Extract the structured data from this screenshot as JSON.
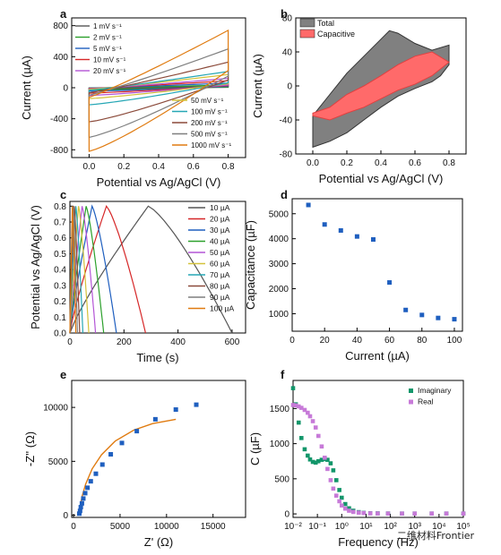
{
  "watermark": {
    "text": "二维材料Frontier"
  },
  "colors": {
    "one": "#555555",
    "two": "#2ca02c",
    "five": "#1f5fbf",
    "ten": "#d62728",
    "twenty": "#b455d6",
    "fifty": "#d4c23a",
    "hundred": "#26a7b5",
    "twohundred": "#8b4a3a",
    "fivehundred": "#7f7f7f",
    "thousand": "#e07b10",
    "total": "#808080",
    "capacitive": "#ff6a6a",
    "blue": "#1f5fbf",
    "green": "#12966a",
    "purple": "#c77ad8"
  },
  "chart_data": [
    {
      "panel": "a",
      "type": "line",
      "xlabel": "Potential vs Ag/AgCl (V)",
      "ylabel": "Current (µA)",
      "xlim": [
        -0.1,
        0.9
      ],
      "ylim": [
        -900,
        900
      ],
      "xticks": [
        "0.0",
        "0.2",
        "0.4",
        "0.6",
        "0.8"
      ],
      "yticks": [
        "-800",
        "-400",
        "0",
        "400",
        "800"
      ],
      "legend_left": [
        "1 mV s⁻¹",
        "2 mV s⁻¹",
        "5 mV s⁻¹",
        "10 mV s⁻¹",
        "20 mV s⁻¹"
      ],
      "legend_right": [
        "50 mV s⁻¹",
        "100 mV s⁻¹",
        "200 mV s⁻¹",
        "500 mV s⁻¹",
        "1000 mV s⁻¹"
      ],
      "series": [
        {
          "name": "1 mV s⁻¹",
          "color_key": "one",
          "upper_max": 20,
          "lower_min": -15
        },
        {
          "name": "2 mV s⁻¹",
          "color_key": "two",
          "upper_max": 35,
          "lower_min": -30
        },
        {
          "name": "5 mV s⁻¹",
          "color_key": "five",
          "upper_max": 60,
          "lower_min": -45
        },
        {
          "name": "10 mV s⁻¹",
          "color_key": "ten",
          "upper_max": 90,
          "lower_min": -70
        },
        {
          "name": "20 mV s⁻¹",
          "color_key": "twenty",
          "upper_max": 120,
          "lower_min": -100
        },
        {
          "name": "50 mV s⁻¹",
          "color_key": "fifty",
          "upper_max": 170,
          "lower_min": -140
        },
        {
          "name": "100 mV s⁻¹",
          "color_key": "hundred",
          "upper_max": 210,
          "lower_min": -220
        },
        {
          "name": "200 mV s⁻¹",
          "color_key": "twohundred",
          "upper_max": 330,
          "lower_min": -440
        },
        {
          "name": "500 mV s⁻¹",
          "color_key": "fivehundred",
          "upper_max": 500,
          "lower_min": -640
        },
        {
          "name": "1000 mV s⁻¹",
          "color_key": "thousand",
          "upper_max": 740,
          "lower_min": -820
        }
      ]
    },
    {
      "panel": "b",
      "type": "area",
      "xlabel": "Potential vs Ag/AgCl (V)",
      "ylabel": "Current (µA)",
      "xlim": [
        -0.1,
        0.9
      ],
      "ylim": [
        -80,
        80
      ],
      "xticks": [
        "0.0",
        "0.2",
        "0.4",
        "0.6",
        "0.8"
      ],
      "yticks": [
        "-80",
        "-40",
        "0",
        "40",
        "80"
      ],
      "legend": [
        "Total",
        "Capacitive"
      ],
      "total_upper": [
        [
          0.0,
          -35
        ],
        [
          0.1,
          -10
        ],
        [
          0.2,
          15
        ],
        [
          0.3,
          35
        ],
        [
          0.4,
          55
        ],
        [
          0.45,
          65
        ],
        [
          0.5,
          62
        ],
        [
          0.6,
          50
        ],
        [
          0.7,
          42
        ],
        [
          0.8,
          48
        ]
      ],
      "total_lower": [
        [
          0.8,
          25
        ],
        [
          0.75,
          12
        ],
        [
          0.7,
          5
        ],
        [
          0.6,
          -3
        ],
        [
          0.5,
          -12
        ],
        [
          0.4,
          -25
        ],
        [
          0.3,
          -40
        ],
        [
          0.2,
          -55
        ],
        [
          0.1,
          -65
        ],
        [
          0.0,
          -72
        ]
      ],
      "cap_upper": [
        [
          0.0,
          -32
        ],
        [
          0.1,
          -25
        ],
        [
          0.2,
          -10
        ],
        [
          0.3,
          0
        ],
        [
          0.4,
          12
        ],
        [
          0.5,
          25
        ],
        [
          0.6,
          35
        ],
        [
          0.7,
          40
        ],
        [
          0.8,
          28
        ]
      ],
      "cap_lower": [
        [
          0.8,
          28
        ],
        [
          0.7,
          12
        ],
        [
          0.6,
          2
        ],
        [
          0.5,
          -5
        ],
        [
          0.4,
          -15
        ],
        [
          0.3,
          -25
        ],
        [
          0.2,
          -32
        ],
        [
          0.1,
          -40
        ],
        [
          0.0,
          -35
        ]
      ]
    },
    {
      "panel": "c",
      "type": "line",
      "xlabel": "Time (s)",
      "ylabel": "Potential vs Ag/AgCl (V)",
      "xlim": [
        0,
        650
      ],
      "ylim": [
        0,
        0.83
      ],
      "xticks": [
        "0",
        "200",
        "400",
        "600"
      ],
      "yticks": [
        "0.0",
        "0.1",
        "0.2",
        "0.3",
        "0.4",
        "0.5",
        "0.6",
        "0.7",
        "0.8"
      ],
      "legend": [
        "10 µA",
        "20 µA",
        "30 µA",
        "40 µA",
        "50 µA",
        "60 µA",
        "70 µA",
        "80 µA",
        "90 µA",
        "100 µA"
      ],
      "series": [
        {
          "name": "10 µA",
          "color_key": "one",
          "t_peak": 290,
          "t_end": 600
        },
        {
          "name": "20 µA",
          "color_key": "ten",
          "t_peak": 135,
          "t_end": 280
        },
        {
          "name": "30 µA",
          "color_key": "five",
          "t_peak": 82,
          "t_end": 172
        },
        {
          "name": "40 µA",
          "color_key": "two",
          "t_peak": 60,
          "t_end": 125
        },
        {
          "name": "50 µA",
          "color_key": "twenty",
          "t_peak": 45,
          "t_end": 95
        },
        {
          "name": "60 µA",
          "color_key": "fifty",
          "t_peak": 32,
          "t_end": 70
        },
        {
          "name": "70 µA",
          "color_key": "hundred",
          "t_peak": 22,
          "t_end": 48
        },
        {
          "name": "80 µA",
          "color_key": "twohundred",
          "t_peak": 16,
          "t_end": 36
        },
        {
          "name": "90 µA",
          "color_key": "fivehundred",
          "t_peak": 12,
          "t_end": 28
        },
        {
          "name": "100 µA",
          "color_key": "thousand",
          "t_peak": 9,
          "t_end": 22
        }
      ]
    },
    {
      "panel": "d",
      "type": "scatter",
      "xlabel": "Current (µA)",
      "ylabel": "Capacitance (µF)",
      "xlim": [
        0,
        105
      ],
      "ylim": [
        300,
        5600
      ],
      "xticks": [
        "0",
        "20",
        "40",
        "60",
        "80",
        "100"
      ],
      "yticks": [
        "1000",
        "2000",
        "3000",
        "4000",
        "5000"
      ],
      "x": [
        10,
        20,
        30,
        40,
        50,
        60,
        70,
        80,
        90,
        100
      ],
      "y": [
        5350,
        4570,
        4330,
        4090,
        3970,
        2250,
        1150,
        950,
        830,
        780
      ]
    },
    {
      "panel": "e",
      "type": "scatter",
      "xlabel": "Z' (Ω)",
      "ylabel": "-Z'' (Ω)",
      "xlim": [
        -200,
        18500
      ],
      "ylim": [
        -200,
        12500
      ],
      "xticks": [
        "0",
        "5000",
        "10000",
        "15000"
      ],
      "yticks": [
        "0",
        "5000",
        "10000"
      ],
      "x": [
        620,
        700,
        780,
        900,
        1050,
        1250,
        1500,
        1850,
        2400,
        3100,
        4000,
        5200,
        6800,
        8800,
        11000,
        13200
      ],
      "y": [
        150,
        400,
        750,
        1100,
        1550,
        2050,
        2550,
        3150,
        3850,
        4700,
        5650,
        6700,
        7800,
        8900,
        9800,
        10250
      ],
      "fit": [
        [
          600,
          0
        ],
        [
          700,
          700
        ],
        [
          900,
          1700
        ],
        [
          1300,
          2900
        ],
        [
          2000,
          4300
        ],
        [
          3000,
          5600
        ],
        [
          4500,
          6900
        ],
        [
          6500,
          7900
        ],
        [
          8500,
          8500
        ],
        [
          11000,
          8900
        ]
      ]
    },
    {
      "panel": "f",
      "type": "scatter",
      "xlabel": "Frequency (Hz)",
      "ylabel": "C (µF)",
      "x_scale": "log",
      "xlim": [
        0.01,
        100000
      ],
      "ylim": [
        -50,
        1900
      ],
      "xticks": [
        "10⁻²",
        "10⁻¹",
        "10⁰",
        "10¹",
        "10²",
        "10³",
        "10⁴",
        "10⁵"
      ],
      "yticks": [
        "0",
        "500",
        "1000",
        "1500"
      ],
      "legend": [
        "Imaginary",
        "Real"
      ],
      "series": [
        {
          "name": "Imaginary",
          "color_key": "green",
          "x": [
            0.01,
            0.013,
            0.017,
            0.022,
            0.03,
            0.04,
            0.05,
            0.065,
            0.085,
            0.11,
            0.15,
            0.2,
            0.26,
            0.35,
            0.45,
            0.6,
            0.8,
            1.0,
            1.4,
            2.0,
            3.0,
            5.0,
            8,
            15,
            30,
            80,
            300,
            1000,
            5000,
            20000,
            100000
          ],
          "y": [
            1790,
            1560,
            1300,
            1080,
            920,
            830,
            775,
            740,
            730,
            750,
            770,
            780,
            770,
            720,
            620,
            480,
            340,
            230,
            140,
            80,
            45,
            25,
            15,
            10,
            8,
            6,
            5,
            5,
            5,
            5,
            5
          ]
        },
        {
          "name": "Real",
          "color_key": "purple",
          "x": [
            0.01,
            0.013,
            0.017,
            0.022,
            0.03,
            0.04,
            0.05,
            0.065,
            0.085,
            0.11,
            0.15,
            0.2,
            0.26,
            0.35,
            0.45,
            0.6,
            0.8,
            1.0,
            1.4,
            2.0,
            3.0,
            5.0,
            8,
            15,
            30,
            80,
            300,
            1000,
            5000,
            20000,
            100000
          ],
          "y": [
            1550,
            1545,
            1530,
            1510,
            1480,
            1440,
            1390,
            1320,
            1230,
            1110,
            960,
            800,
            640,
            480,
            360,
            260,
            180,
            120,
            75,
            45,
            28,
            18,
            12,
            8,
            6,
            5,
            5,
            5,
            5,
            5,
            5
          ]
        }
      ]
    }
  ]
}
